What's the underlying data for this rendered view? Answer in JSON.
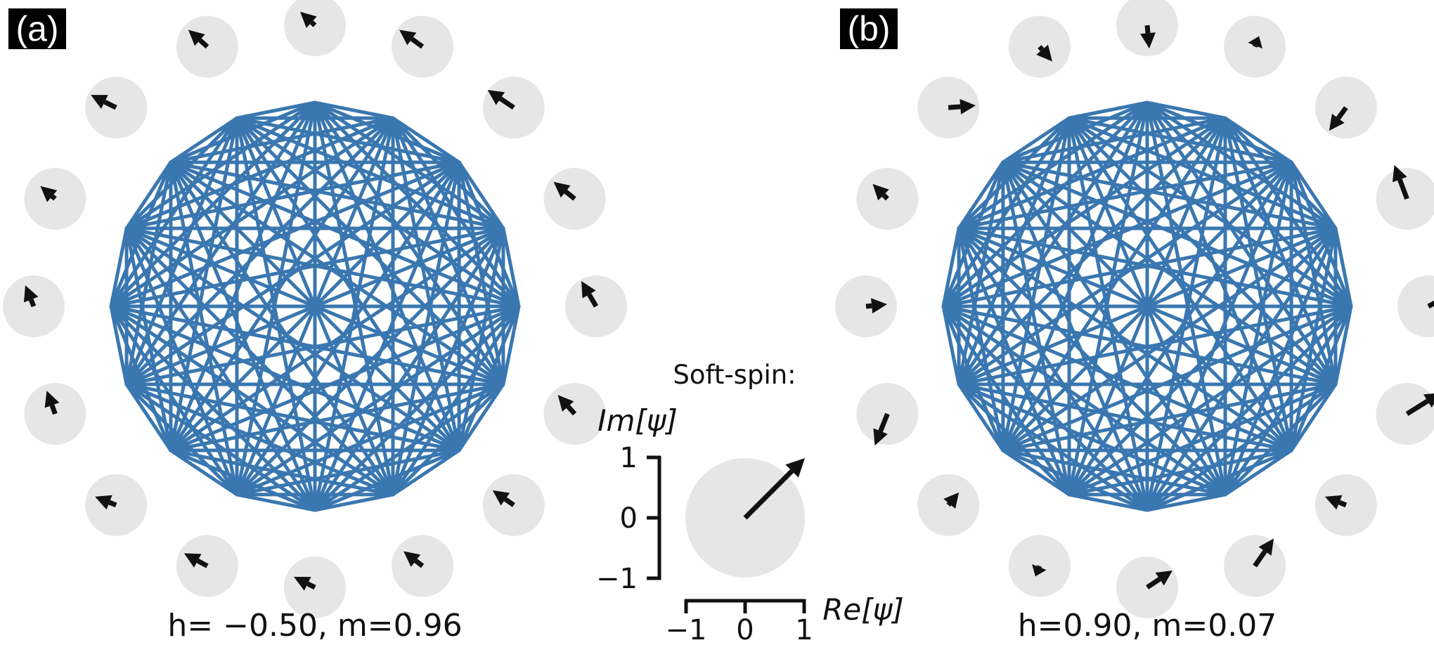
{
  "colors": {
    "edge": "#3a77b0",
    "site": "#e6e6e6",
    "arrow": "#111111",
    "label_bg": "#000000",
    "label_text": "#ffffff"
  },
  "panels": [
    {
      "label": "(a)",
      "caption": "h= −0.50, m=0.96",
      "node_count": 16,
      "spins": [
        {
          "re": -0.35,
          "im": 0.32
        },
        {
          "re": -0.55,
          "im": 0.4
        },
        {
          "re": -0.62,
          "im": 0.42
        },
        {
          "re": -0.5,
          "im": 0.4
        },
        {
          "re": -0.35,
          "im": 0.6
        },
        {
          "re": -0.4,
          "im": 0.45
        },
        {
          "re": -0.5,
          "im": 0.35
        },
        {
          "re": -0.45,
          "im": 0.35
        },
        {
          "re": -0.5,
          "im": 0.25
        },
        {
          "re": -0.55,
          "im": 0.3
        },
        {
          "re": -0.5,
          "im": 0.2
        },
        {
          "re": -0.2,
          "im": 0.55
        },
        {
          "re": -0.2,
          "im": 0.5
        },
        {
          "re": -0.35,
          "im": 0.3
        },
        {
          "re": -0.6,
          "im": 0.3
        },
        {
          "re": -0.45,
          "im": 0.4
        }
      ]
    },
    {
      "label": "(b)",
      "caption": "h=0.90, m=0.07",
      "node_count": 16,
      "spins": [
        {
          "re": 0.05,
          "im": -0.55
        },
        {
          "re": 0.1,
          "im": 0.25
        },
        {
          "re": -0.4,
          "im": -0.55
        },
        {
          "re": -0.3,
          "im": 0.8
        },
        {
          "re": 0.65,
          "im": 0.35
        },
        {
          "re": 0.8,
          "im": 0.5
        },
        {
          "re": -0.5,
          "im": 0.2
        },
        {
          "re": 0.45,
          "im": 0.65
        },
        {
          "re": 0.6,
          "im": 0.4
        },
        {
          "re": -0.1,
          "im": -0.25
        },
        {
          "re": 0.25,
          "im": 0.3
        },
        {
          "re": -0.3,
          "im": -0.75
        },
        {
          "re": 0.5,
          "im": 0.05
        },
        {
          "re": -0.35,
          "im": 0.35
        },
        {
          "re": 0.65,
          "im": 0.05
        },
        {
          "re": 0.3,
          "im": -0.35
        }
      ]
    }
  ],
  "legend": {
    "title": "Soft-spin:",
    "ylabel": "Im[ψ]",
    "xlabel": "Re[ψ]",
    "yticks": [
      "1",
      "0",
      "−1"
    ],
    "xticks": [
      "−1",
      "0",
      "1"
    ],
    "example_spin": {
      "re": 1.0,
      "im": 1.0
    }
  }
}
